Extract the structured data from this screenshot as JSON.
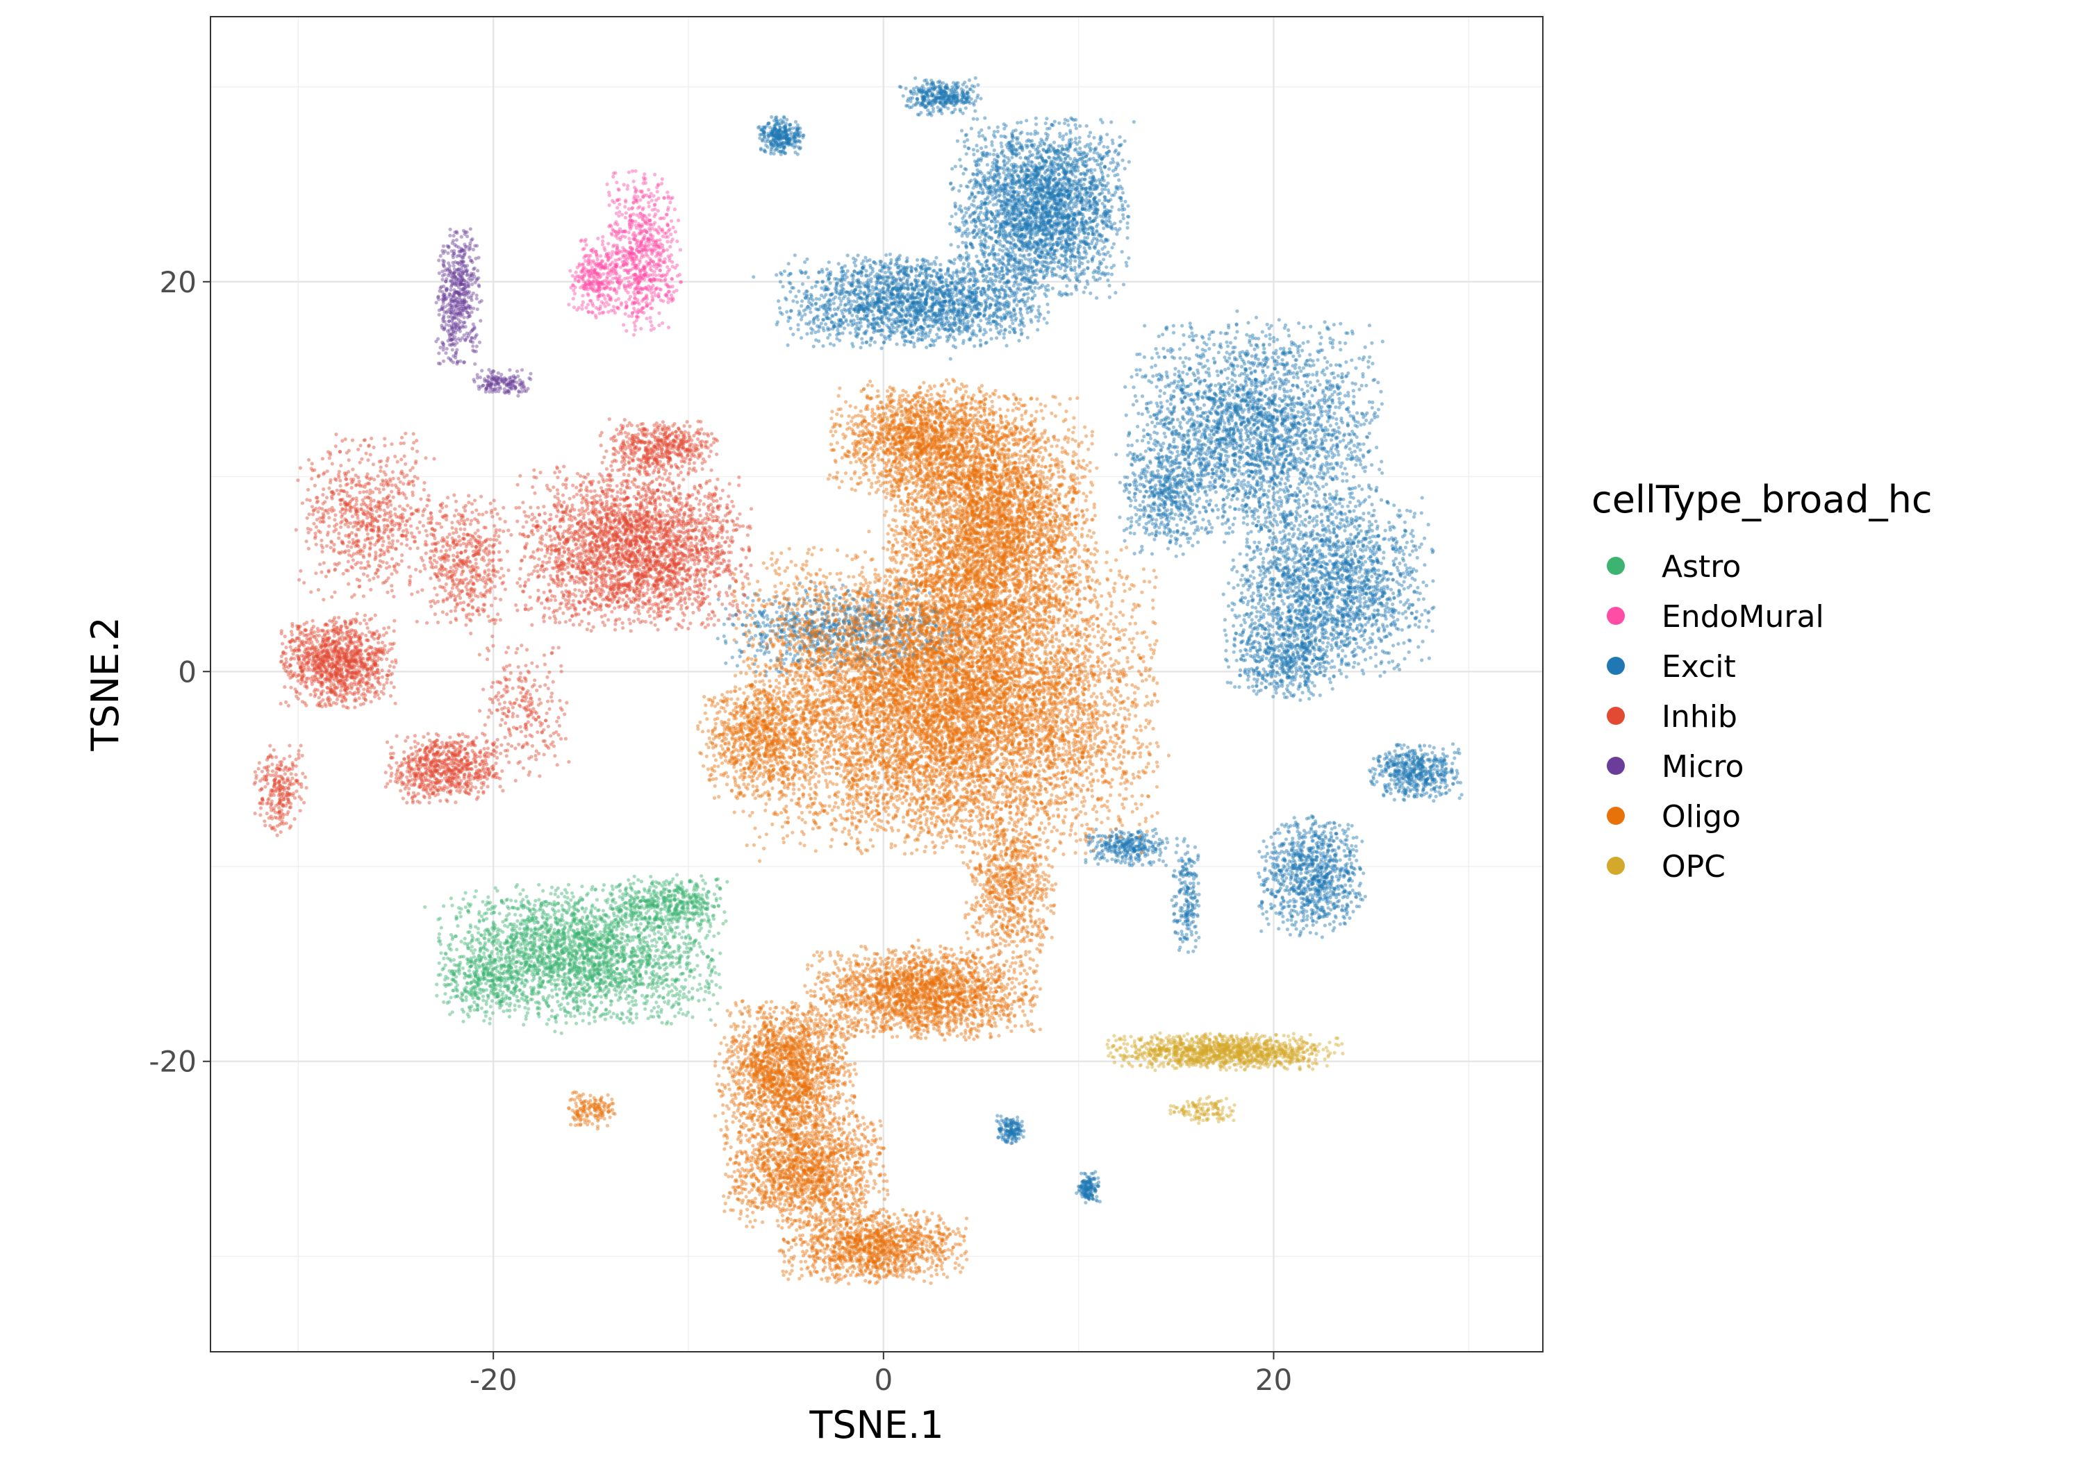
{
  "chart_data": {
    "type": "scatter",
    "title": "",
    "xlabel": "TSNE.1",
    "ylabel": "TSNE.2",
    "xlim": [
      -34.5,
      33.8
    ],
    "ylim": [
      -34.9,
      33.6
    ],
    "x_ticks": [
      -20,
      0,
      20
    ],
    "y_ticks": [
      -20,
      0,
      20
    ],
    "x_tick_labels": [
      "-20",
      "0",
      "20"
    ],
    "y_tick_labels": [
      "-20",
      "0",
      "20"
    ],
    "grid": true,
    "legend": {
      "title": "cellType_broad_hc",
      "position": "right",
      "entries": [
        "Astro",
        "EndoMural",
        "Excit",
        "Inhib",
        "Micro",
        "Oligo",
        "OPC"
      ]
    },
    "series": [
      {
        "name": "Astro",
        "color": "#3cb371",
        "clusters": [
          [
            -15.6,
            -14.5,
            6.0,
            3.0,
            1.0,
            2600
          ],
          [
            -11,
            -11.8,
            2.5,
            1.1,
            1.0,
            400
          ],
          [
            -20.5,
            -16.0,
            2.0,
            1.5,
            1.0,
            250
          ]
        ]
      },
      {
        "name": "EndoMural",
        "color": "#ff4da6",
        "clusters": [
          [
            -12.3,
            21.5,
            1.6,
            3.5,
            1.0,
            700
          ],
          [
            -14.7,
            20.2,
            1.2,
            1.8,
            1.0,
            300
          ]
        ]
      },
      {
        "name": "Excit",
        "color": "#1f77b4",
        "clusters": [
          [
            8.0,
            23.8,
            3.8,
            3.8,
            1.0,
            2800
          ],
          [
            1.5,
            19.0,
            5.8,
            2.0,
            1.0,
            2000
          ],
          [
            19.0,
            12.5,
            5.5,
            4.5,
            1.0,
            2600
          ],
          [
            22.8,
            4.5,
            4.5,
            4.0,
            1.0,
            2000
          ],
          [
            20.5,
            0.8,
            2.5,
            2.0,
            1.0,
            500
          ],
          [
            27.3,
            -5.2,
            2.0,
            1.2,
            1.0,
            500
          ],
          [
            22.0,
            -10.5,
            2.3,
            2.6,
            1.0,
            900
          ],
          [
            3.0,
            29.5,
            1.8,
            0.8,
            1.0,
            350
          ],
          [
            -5.3,
            27.5,
            1.0,
            0.8,
            1.0,
            300
          ],
          [
            -2.0,
            2.2,
            5.5,
            2.0,
            1.0,
            900
          ],
          [
            14.5,
            9.0,
            2.0,
            2.5,
            1.0,
            450
          ],
          [
            12.5,
            -9.0,
            1.8,
            0.8,
            1.0,
            300
          ],
          [
            15.5,
            -11.5,
            0.6,
            2.5,
            1.0,
            200
          ],
          [
            6.5,
            -23.5,
            0.6,
            0.6,
            1.0,
            150
          ],
          [
            10.5,
            -26.5,
            0.5,
            0.7,
            1.0,
            150
          ]
        ]
      },
      {
        "name": "Inhib",
        "color": "#e34a33",
        "clusters": [
          [
            -12.8,
            6.3,
            5.0,
            3.5,
            1.0,
            2800
          ],
          [
            -28.0,
            0.5,
            2.5,
            2.0,
            1.0,
            1100
          ],
          [
            -22.5,
            -5.0,
            2.5,
            1.5,
            1.0,
            700
          ],
          [
            -26.5,
            8.0,
            3.0,
            3.5,
            1.0,
            700
          ],
          [
            -21.5,
            5.5,
            2.0,
            3.0,
            1.0,
            500
          ],
          [
            -11.5,
            11.5,
            2.5,
            1.2,
            1.0,
            500
          ],
          [
            -31.0,
            -6.0,
            1.2,
            2.0,
            1.0,
            250
          ],
          [
            -18.5,
            -2.0,
            2.0,
            3.0,
            1.0,
            250
          ]
        ]
      },
      {
        "name": "Micro",
        "color": "#6a3d9a",
        "clusters": [
          [
            -21.8,
            19.3,
            1.0,
            3.0,
            1.0,
            500
          ],
          [
            -19.5,
            14.8,
            1.3,
            0.6,
            1.0,
            150
          ]
        ]
      },
      {
        "name": "Oligo",
        "color": "#e8710a",
        "clusters": [
          [
            3.2,
            -1.5,
            9.0,
            6.5,
            1.0,
            9000
          ],
          [
            5.5,
            7.5,
            4.5,
            5.5,
            1.0,
            4000
          ],
          [
            2.0,
            12.0,
            4.0,
            2.5,
            1.0,
            1500
          ],
          [
            2.0,
            -16.5,
            5.0,
            2.0,
            1.0,
            2000
          ],
          [
            -5.0,
            -20.5,
            3.0,
            3.0,
            1.0,
            1800
          ],
          [
            -4.0,
            -25.5,
            3.5,
            2.5,
            1.0,
            1500
          ],
          [
            -0.5,
            -29.5,
            4.0,
            1.6,
            1.0,
            1200
          ],
          [
            -6.5,
            -3.5,
            2.5,
            2.5,
            1.0,
            800
          ],
          [
            6.5,
            -11.0,
            2.0,
            3.0,
            1.0,
            700
          ],
          [
            -15.0,
            -22.5,
            1.2,
            0.8,
            1.0,
            150
          ]
        ]
      },
      {
        "name": "OPC",
        "color": "#d4a82a",
        "clusters": [
          [
            17.5,
            -19.5,
            5.0,
            0.8,
            1.0,
            1200
          ],
          [
            16.5,
            -22.5,
            1.5,
            0.6,
            1.0,
            120
          ]
        ]
      }
    ]
  }
}
